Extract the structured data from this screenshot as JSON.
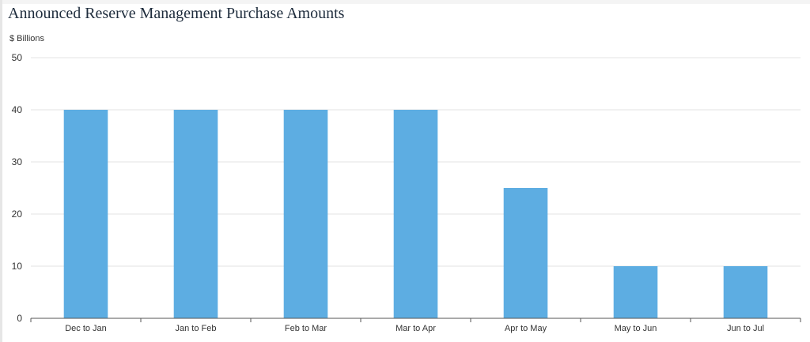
{
  "chart_data": {
    "type": "bar",
    "title": "Announced Reserve Management Purchase Amounts",
    "ylabel": "$ Billions",
    "xlabel": "",
    "categories": [
      "Dec to Jan",
      "Jan to Feb",
      "Feb to Mar",
      "Mar to Apr",
      "Apr to May",
      "May to Jun",
      "Jun to Jul"
    ],
    "values": [
      40,
      40,
      40,
      40,
      25,
      10,
      10
    ],
    "ylim": [
      0,
      50
    ],
    "yticks": [
      "0",
      "10",
      "20",
      "30",
      "40",
      "50"
    ],
    "grid": true,
    "bar_color": "#5dade2",
    "grid_color": "#e3e3e3",
    "axis_color": "#555555"
  }
}
